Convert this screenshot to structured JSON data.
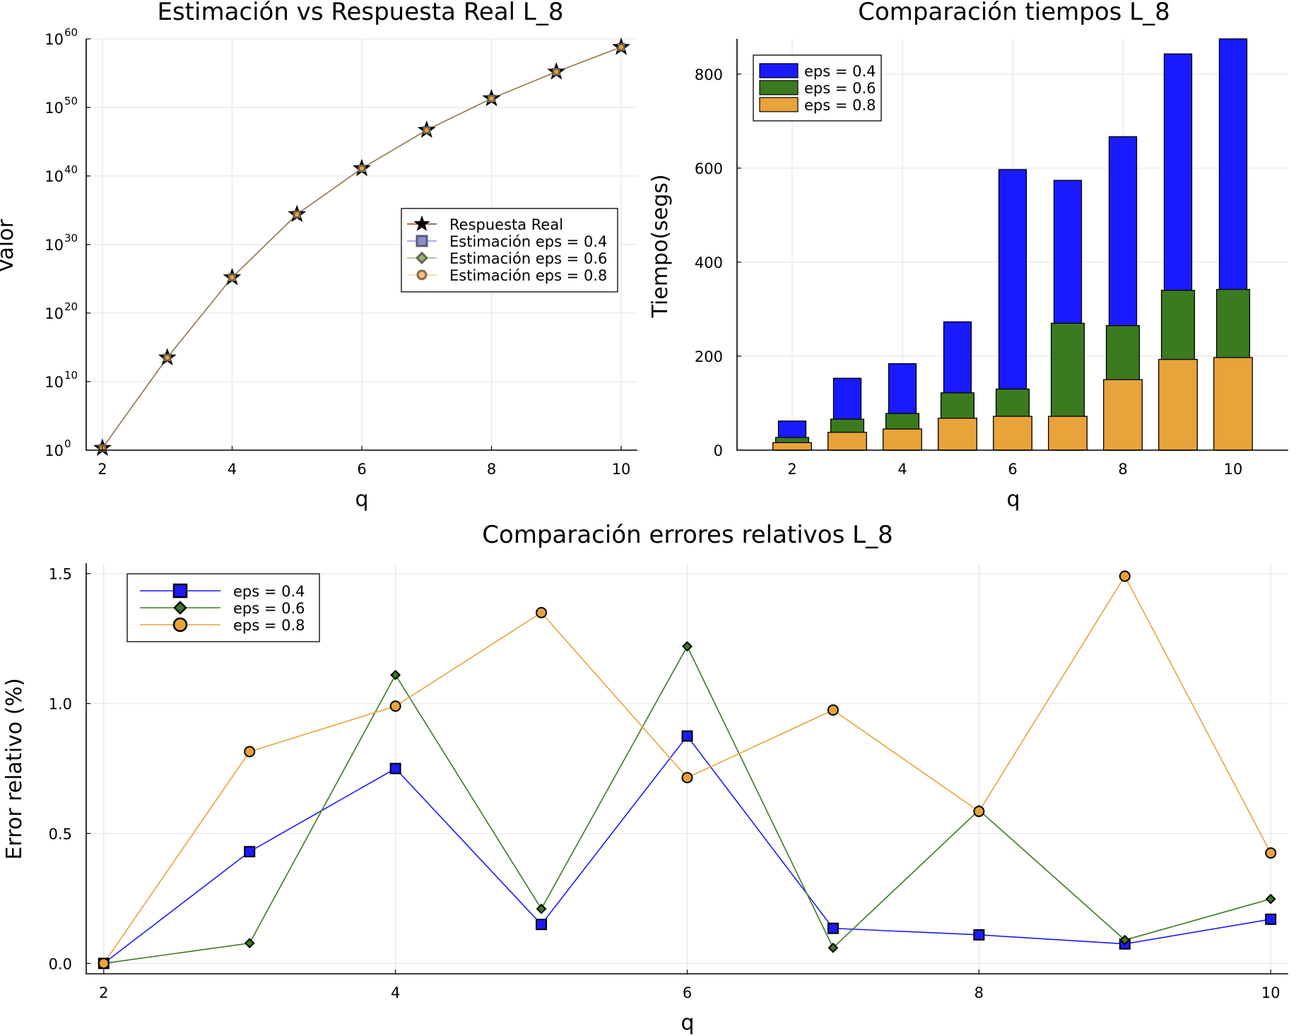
{
  "chart_data": [
    {
      "type": "line",
      "title": "Estimación vs Respuesta Real L_8",
      "xlabel": "q",
      "ylabel": "Valor",
      "yscale": "log10",
      "xlim": [
        1.75,
        10.25
      ],
      "ylim_log10": [
        0,
        60
      ],
      "x_ticks": [
        "2",
        "4",
        "6",
        "8",
        "10"
      ],
      "y_ticks": [
        {
          "base": "10",
          "exp": "0",
          "log10": 0
        },
        {
          "base": "10",
          "exp": "10",
          "log10": 10
        },
        {
          "base": "10",
          "exp": "20",
          "log10": 20
        },
        {
          "base": "10",
          "exp": "30",
          "log10": 30
        },
        {
          "base": "10",
          "exp": "40",
          "log10": 40
        },
        {
          "base": "10",
          "exp": "50",
          "log10": 50
        },
        {
          "base": "10",
          "exp": "60",
          "log10": 60
        }
      ],
      "x": [
        2,
        3,
        4,
        5,
        6,
        7,
        8,
        9,
        10
      ],
      "series_log10": [
        {
          "name": "Respuesta Real",
          "marker": "star",
          "color": "#000000",
          "line_color": "#8b4513",
          "values": [
            0.3,
            13.5,
            25.2,
            34.4,
            41.1,
            46.7,
            51.3,
            55.2,
            58.8
          ]
        },
        {
          "name": "Estimación eps = 0.4",
          "marker": "square",
          "color": "#1a1aff",
          "values": [
            0.3,
            13.5,
            25.2,
            34.4,
            41.1,
            46.7,
            51.3,
            55.2,
            58.8
          ]
        },
        {
          "name": "Estimación eps = 0.6",
          "marker": "diamond",
          "color": "#3b7a1e",
          "values": [
            0.3,
            13.5,
            25.2,
            34.4,
            41.1,
            46.7,
            51.3,
            55.2,
            58.8
          ]
        },
        {
          "name": "Estimación eps = 0.8",
          "marker": "circle",
          "color": "#e8a33a",
          "values": [
            0.3,
            13.5,
            25.2,
            34.4,
            41.1,
            46.7,
            51.3,
            55.2,
            58.8
          ]
        }
      ],
      "legend_position": "right"
    },
    {
      "type": "bar",
      "title": "Comparación tiempos L_8",
      "xlabel": "q",
      "ylabel": "Tiempo(segs)",
      "xlim": [
        1.0,
        11.0
      ],
      "ylim": [
        0,
        875
      ],
      "x_ticks": [
        "2",
        "4",
        "6",
        "8",
        "10"
      ],
      "y_ticks": [
        "0",
        "200",
        "400",
        "600",
        "800"
      ],
      "y_tick_values": [
        0,
        200,
        400,
        600,
        800
      ],
      "categories": [
        2,
        3,
        4,
        5,
        6,
        7,
        8,
        9,
        10
      ],
      "series": [
        {
          "name": "eps = 0.4",
          "color": "#1a1aff",
          "values": [
            62,
            153,
            184,
            273,
            597,
            574,
            667,
            843,
            875
          ],
          "bar_width": 0.5
        },
        {
          "name": "eps = 0.6",
          "color": "#3b7a1e",
          "values": [
            27,
            66,
            78,
            122,
            130,
            270,
            265,
            340,
            342
          ],
          "bar_width": 0.6
        },
        {
          "name": "eps = 0.8",
          "color": "#e8a33a",
          "values": [
            16,
            38,
            45,
            68,
            72,
            72,
            150,
            193,
            197
          ],
          "bar_width": 0.7
        }
      ],
      "legend_position": "top-left"
    },
    {
      "type": "line",
      "title": "Comparación errores relativos L_8",
      "xlabel": "q",
      "ylabel": "Error relativo (%)",
      "xlim": [
        1.88,
        10.12
      ],
      "ylim": [
        -0.04,
        1.54
      ],
      "x_ticks": [
        "2",
        "4",
        "6",
        "8",
        "10"
      ],
      "y_ticks": [
        "0.0",
        "0.5",
        "1.0",
        "1.5"
      ],
      "y_tick_values": [
        0,
        0.5,
        1.0,
        1.5
      ],
      "x": [
        2,
        3,
        4,
        5,
        6,
        7,
        8,
        9,
        10
      ],
      "series": [
        {
          "name": "eps = 0.4",
          "marker": "square",
          "color": "#1a1aff",
          "values": [
            0.0,
            0.43,
            0.75,
            0.15,
            0.875,
            0.135,
            0.11,
            0.075,
            0.17
          ]
        },
        {
          "name": "eps = 0.6",
          "marker": "diamond",
          "color": "#3b7a1e",
          "values": [
            0.0,
            0.078,
            1.11,
            0.21,
            1.22,
            0.06,
            0.59,
            0.09,
            0.248
          ]
        },
        {
          "name": "eps = 0.8",
          "marker": "circle",
          "color": "#e8a33a",
          "values": [
            0.0,
            0.815,
            0.99,
            1.35,
            0.715,
            0.975,
            0.585,
            1.49,
            0.425
          ]
        }
      ],
      "legend_position": "top-left"
    }
  ]
}
